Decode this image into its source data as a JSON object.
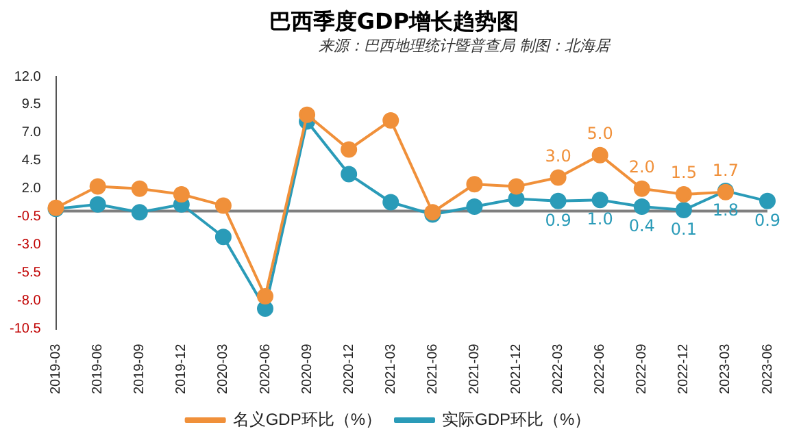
{
  "chart_data": {
    "type": "line",
    "title": "巴西季度GDP增长趋势图",
    "subtitle": "来源：巴西地理统计暨普查局  制图：北海居",
    "categories": [
      "2019-03",
      "2019-06",
      "2019-09",
      "2019-12",
      "2020-03",
      "2020-06",
      "2020-09",
      "2020-12",
      "2021-03",
      "2021-06",
      "2021-09",
      "2021-12",
      "2022-03",
      "2022-06",
      "2022-09",
      "2022-12",
      "2023-03",
      "2023-06"
    ],
    "series": [
      {
        "name": "名义GDP环比（%）",
        "color": "#f0903a",
        "values": [
          0.3,
          2.2,
          2.0,
          1.5,
          0.5,
          -7.6,
          8.6,
          5.5,
          8.1,
          -0.1,
          2.4,
          2.2,
          3.0,
          5.0,
          2.0,
          1.5,
          1.7,
          null
        ],
        "value_labels": [
          null,
          null,
          null,
          null,
          null,
          null,
          null,
          null,
          null,
          null,
          null,
          null,
          "3.0",
          "5.0",
          "2.0",
          "1.5",
          "1.7",
          null
        ]
      },
      {
        "name": "实际GDP环比（%）",
        "color": "#2a9bb8",
        "values": [
          0.2,
          0.6,
          -0.1,
          0.6,
          -2.3,
          -8.7,
          8.0,
          3.3,
          0.8,
          -0.3,
          0.4,
          1.1,
          0.9,
          1.0,
          0.4,
          0.1,
          1.8,
          0.9
        ],
        "value_labels": [
          null,
          null,
          null,
          null,
          null,
          null,
          null,
          null,
          null,
          null,
          null,
          null,
          "0.9",
          "1.0",
          "0.4",
          "0.1",
          "1.8",
          "0.9"
        ]
      }
    ],
    "ylim": [
      -10.5,
      12.0
    ],
    "yticks": [
      {
        "value": 12,
        "label": "12.0"
      },
      {
        "value": 9.5,
        "label": "9.5"
      },
      {
        "value": 7,
        "label": "7.0"
      },
      {
        "value": 4.5,
        "label": "4.5"
      },
      {
        "value": 2,
        "label": "2.0"
      },
      {
        "value": -0.5,
        "label": "-0.5"
      },
      {
        "value": -3,
        "label": "-3.0"
      },
      {
        "value": -5.5,
        "label": "-5.5"
      },
      {
        "value": -8,
        "label": "-8.0"
      },
      {
        "value": -10.5,
        "label": "-10.5"
      }
    ],
    "ref_lines": [
      {
        "axis": "y",
        "value": 0,
        "color": "#7f7f7f"
      }
    ],
    "grid": false,
    "legend": "bottom",
    "marker": "circle",
    "line_style": "solid"
  }
}
